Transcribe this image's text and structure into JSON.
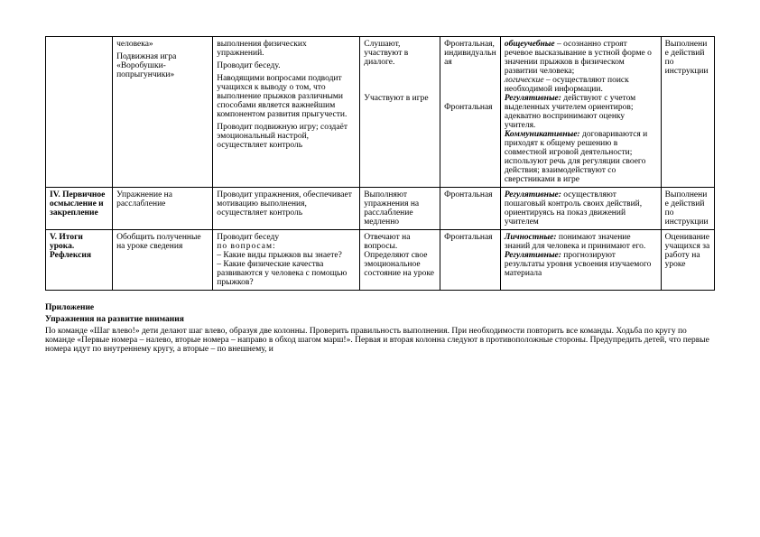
{
  "table": {
    "row0": {
      "c1": "",
      "c2_l1": "человека»",
      "c2_l2": "Подвижная игра «Воробушки-попрыгунчики»",
      "c3_p1": "выполнения физических упражнений.",
      "c3_p2": "Проводит беседу.",
      "c3_p3": "Наводящими вопросами подводит учащихся к выводу о том, что выполнение прыжков различными способами является важнейшим компонентом развития прыгучести.",
      "c3_p4": "Проводит подвижную игру; создаёт эмоциональный настрой, осуществляет контроль",
      "c4_p1": "Слушают, участвуют в диалоге.",
      "c4_p2": "Участвуют в игре",
      "c5_p1": "Фронтальная, индивидуальная",
      "c5_p2": "Фронтальная",
      "c6_i1": "общеучебные",
      "c6_t1": " – осознанно строят речевое высказывание в устной форме о значении прыжков в физическом развитии человека;",
      "c6_i2": "логические",
      "c6_t2": " – осуществляют поиск необходимой информации.",
      "c6_b1": "Регулятивные:",
      "c6_t3": " действуют с учетом выделенных учителем ориентиров; адекватно воспринимают оценку учителя.",
      "c6_b2": "Коммуникативные:",
      "c6_t4": " договариваются и приходят к общему решению в совместной игровой деятельности; используют речь для регуляции своего действия; взаимодействуют со сверстниками в игре",
      "c7": "Выполнение действий по инструкции"
    },
    "row1": {
      "c1": "IV. Первичное осмысление и закрепление",
      "c2": "Упражнение на расслабление",
      "c3": "Проводит упражнения, обеспечивает мотивацию выполнения, осуществляет контроль",
      "c4": "Выполняют упражнения на расслабление медленно",
      "c5": "Фронтальная",
      "c6_b1": "Регулятивные:",
      "c6_t1": " осуществляют пошаговый контроль своих действий, ориентируясь на показ движений учителем",
      "c7": "Выполнение действий по инструкции"
    },
    "row2": {
      "c1": "V. Итоги урока. Рефлексия",
      "c2": "Обобщить полученные на уроке сведения",
      "c3_p1": "Проводит беседу",
      "c3_b1": "по вопросам:",
      "c3_p2": "– Какие виды прыжков вы знаете?",
      "c3_p3": "– Какие физические качества развиваются у человека с помощью прыжков?",
      "c4": "Отвечают на вопросы. Определяют свое эмоциональное состояние на уроке",
      "c5": "Фронтальная",
      "c6_b1": "Личностные:",
      "c6_t1": " понимают значение знаний для человека и принимают его.",
      "c6_b2": "Регулятивные:",
      "c6_t2": " прогнозируют результаты уровня усвоения изучаемого материала",
      "c7": "Оценивание учащихся за работу на уроке"
    }
  },
  "appendix": {
    "title": "Приложение",
    "heading": "Упражнения на развитие внимания",
    "text": "По команде «Шаг влево!» дети делают шаг влево, образуя две колонны. Проверить правильность выполнения. При необходимости повторить все команды. Ходьба по кругу по команде «Первые номера – налево, вторые номера – направо в обход шагом марш!». Первая и вторая колонна следуют в противоположные стороны. Предупредить детей, что первые номера идут по внутреннему кругу, а вторые – по внешнему, и"
  }
}
